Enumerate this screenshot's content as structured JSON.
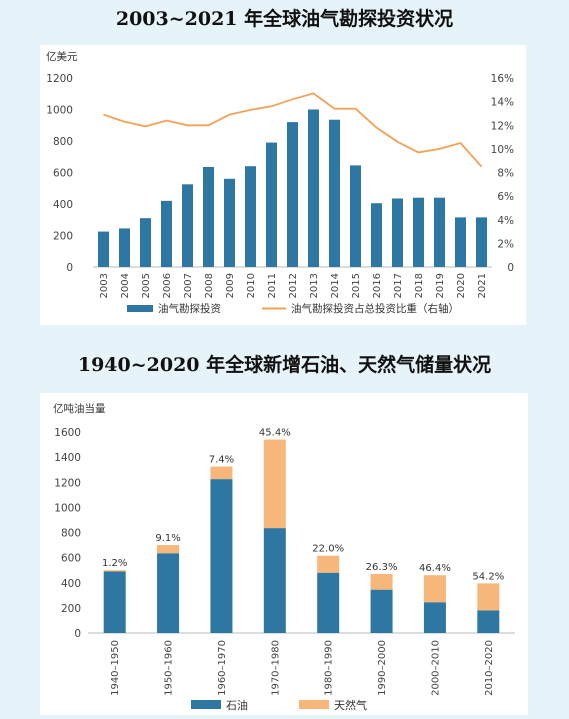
{
  "chart_data": [
    {
      "type": "bar",
      "title": "2003~2021 年全球油气勘探投资状况",
      "ylabel": "亿美元",
      "ylim": [
        0,
        1200
      ],
      "yticks": [
        "0",
        "200",
        "400",
        "600",
        "800",
        "1000",
        "1200"
      ],
      "y2lim": [
        0,
        16
      ],
      "y2ticks": [
        "0",
        "2%",
        "4%",
        "6%",
        "8%",
        "10%",
        "12%",
        "14%",
        "16%"
      ],
      "categories": [
        "2003",
        "2004",
        "2005",
        "2006",
        "2007",
        "2008",
        "2009",
        "2010",
        "2011",
        "2012",
        "2013",
        "2014",
        "2015",
        "2016",
        "2017",
        "2018",
        "2019",
        "2020",
        "2021"
      ],
      "series": [
        {
          "name": "油气勘探投资",
          "type": "bar",
          "axis": "left",
          "color": "#2e77a3",
          "values": [
            225,
            245,
            310,
            420,
            525,
            635,
            560,
            640,
            790,
            920,
            1000,
            935,
            645,
            405,
            435,
            440,
            440,
            315,
            315
          ]
        },
        {
          "name": "油气勘探投资占总投资比重（右轴）",
          "type": "line",
          "axis": "right",
          "color": "#f2a256",
          "values": [
            12.9,
            12.3,
            11.9,
            12.4,
            12.0,
            12.0,
            12.9,
            13.3,
            13.6,
            14.2,
            14.7,
            13.4,
            13.4,
            11.8,
            10.6,
            9.7,
            10.0,
            10.5,
            8.5
          ]
        }
      ],
      "legend_position": "bottom"
    },
    {
      "type": "bar",
      "stacked": true,
      "title": "1940~2020 年全球新增石油、天然气储量状况",
      "ylabel": "亿吨油当量",
      "ylim": [
        0,
        1600
      ],
      "yticks": [
        "0",
        "200",
        "400",
        "600",
        "800",
        "1000",
        "1200",
        "1400",
        "1600"
      ],
      "categories": [
        "1940–1950",
        "1950–1960",
        "1960–1970",
        "1970–1980",
        "1980–1990",
        "1990–2000",
        "2000–2010",
        "2010–2020"
      ],
      "series": [
        {
          "name": "石油",
          "color": "#2e77a3",
          "values": [
            490,
            635,
            1225,
            835,
            480,
            345,
            245,
            180
          ]
        },
        {
          "name": "天然气",
          "color": "#f7b77a",
          "values": [
            10,
            65,
            100,
            705,
            135,
            125,
            215,
            215
          ]
        }
      ],
      "data_labels": [
        "1.2%",
        "9.1%",
        "7.4%",
        "45.4%",
        "22.0%",
        "26.3%",
        "46.4%",
        "54.2%"
      ],
      "legend_position": "bottom"
    }
  ]
}
